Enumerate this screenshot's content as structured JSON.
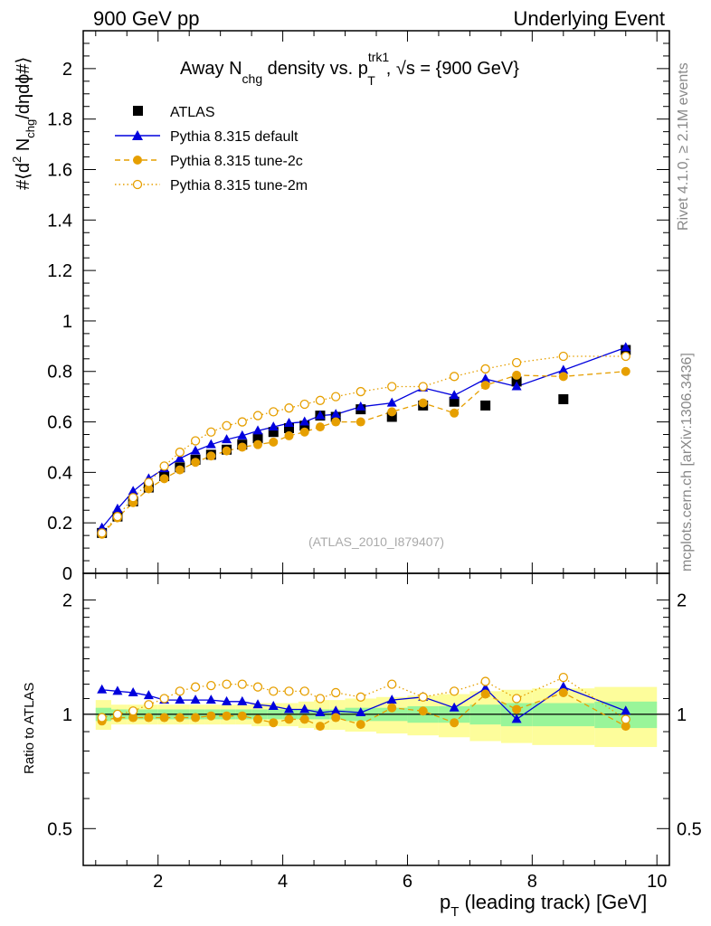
{
  "header": {
    "left": "900 GeV pp",
    "right": "Underlying Event"
  },
  "side_labels": {
    "rivet": "Rivet 4.1.0, ≥ 2.1M events",
    "mcplots": "mcplots.cern.ch [arXiv:1306.3436]"
  },
  "colors": {
    "atlas": "#000000",
    "pythia_default": "#0000dd",
    "tune_2c": "#e69f00",
    "tune_2m": "#e69f00",
    "band_inner": "#99f599",
    "band_outer": "#fdfd9b"
  },
  "chart_data": {
    "type": "scatter",
    "title_parts": {
      "t1": "Away N",
      "t1_sub": "chg",
      "t2": " density vs. p",
      "t2_sup": "trk1",
      "t2_sub": "T",
      "t3": ", √s = {900 GeV}"
    },
    "ylabel_parts": {
      "a": "#⟨d",
      "a_sup": "2",
      "b": " N",
      "b_sub": "chg",
      "c": "/dηdϕ#⟩"
    },
    "xlabel_parts": {
      "a": "p",
      "a_sub": "T",
      "b": " (leading track) [GeV]"
    },
    "ratio_ylabel": "Ratio to ATLAS",
    "watermark": "(ATLAS_2010_I879407)",
    "xlim": [
      0.8,
      10.2
    ],
    "ylim": [
      0,
      2.15
    ],
    "ratio_ylim": [
      0.4,
      2.35
    ],
    "x_ticks": [
      "2",
      "4",
      "6",
      "8",
      "10"
    ],
    "y_ticks": [
      "0",
      "0.2",
      "0.4",
      "0.6",
      "0.8",
      "1",
      "1.2",
      "1.4",
      "1.6",
      "1.8",
      "2"
    ],
    "ratio_ticks": [
      "0.5",
      "1",
      "2"
    ],
    "x": [
      1.1,
      1.35,
      1.6,
      1.85,
      2.1,
      2.35,
      2.6,
      2.85,
      3.1,
      3.35,
      3.6,
      3.85,
      4.1,
      4.35,
      4.6,
      4.85,
      5.25,
      5.75,
      6.25,
      6.75,
      7.25,
      7.75,
      8.5,
      9.5
    ],
    "series": [
      {
        "name": "ATLAS",
        "style": "data",
        "values": [
          0.16,
          0.225,
          0.285,
          0.34,
          0.385,
          0.42,
          0.45,
          0.47,
          0.49,
          0.51,
          0.535,
          0.56,
          0.575,
          0.585,
          0.625,
          0.62,
          0.65,
          0.62,
          0.665,
          0.68,
          0.665,
          0.76,
          0.69,
          0.885
        ]
      },
      {
        "name": "Pythia 8.315 default",
        "style": "solid-triangle",
        "values": [
          0.18,
          0.255,
          0.325,
          0.375,
          0.415,
          0.455,
          0.485,
          0.51,
          0.53,
          0.545,
          0.565,
          0.58,
          0.595,
          0.6,
          0.625,
          0.63,
          0.66,
          0.675,
          0.735,
          0.705,
          0.77,
          0.74,
          0.805,
          0.895
        ]
      },
      {
        "name": "Pythia 8.315 tune-2c",
        "style": "dashed-filled-circle",
        "values": [
          0.155,
          0.22,
          0.28,
          0.335,
          0.375,
          0.41,
          0.44,
          0.465,
          0.485,
          0.5,
          0.51,
          0.52,
          0.545,
          0.56,
          0.58,
          0.6,
          0.6,
          0.64,
          0.675,
          0.635,
          0.745,
          0.785,
          0.78,
          0.8
        ]
      },
      {
        "name": "Pythia 8.315 tune-2m",
        "style": "dotted-open-circle",
        "values": [
          0.16,
          0.225,
          0.3,
          0.36,
          0.425,
          0.48,
          0.525,
          0.56,
          0.585,
          0.6,
          0.625,
          0.64,
          0.655,
          0.67,
          0.685,
          0.7,
          0.72,
          0.74,
          0.74,
          0.78,
          0.81,
          0.835,
          0.86,
          0.86
        ]
      }
    ],
    "ratio_series": [
      {
        "name": "Pythia 8.315 default",
        "values": [
          1.16,
          1.15,
          1.14,
          1.12,
          1.09,
          1.09,
          1.09,
          1.09,
          1.08,
          1.08,
          1.06,
          1.05,
          1.03,
          1.03,
          1.01,
          1.02,
          1.01,
          1.09,
          1.11,
          1.04,
          1.17,
          0.97,
          1.18,
          1.02
        ]
      },
      {
        "name": "Pythia 8.315 tune-2c",
        "values": [
          0.96,
          0.98,
          0.98,
          0.98,
          0.98,
          0.98,
          0.98,
          0.99,
          0.99,
          0.99,
          0.97,
          0.95,
          0.97,
          0.97,
          0.93,
          0.98,
          0.94,
          1.04,
          1.02,
          0.95,
          1.13,
          1.03,
          1.14,
          0.93
        ]
      },
      {
        "name": "Pythia 8.315 tune-2m",
        "values": [
          0.98,
          1.0,
          1.02,
          1.06,
          1.1,
          1.15,
          1.18,
          1.19,
          1.2,
          1.2,
          1.18,
          1.15,
          1.15,
          1.15,
          1.1,
          1.14,
          1.11,
          1.2,
          1.11,
          1.15,
          1.22,
          1.1,
          1.25,
          0.97
        ]
      }
    ],
    "bands": {
      "edges": [
        1.0,
        1.25,
        1.5,
        1.75,
        2.0,
        2.25,
        2.5,
        2.75,
        3.0,
        3.25,
        3.5,
        3.75,
        4.0,
        4.25,
        4.5,
        4.75,
        5.0,
        5.5,
        6.0,
        6.5,
        7.0,
        7.5,
        8.0,
        9.0,
        10.0
      ],
      "inner_halfwidth": [
        0.04,
        0.03,
        0.03,
        0.03,
        0.03,
        0.03,
        0.03,
        0.03,
        0.03,
        0.03,
        0.03,
        0.03,
        0.03,
        0.03,
        0.03,
        0.03,
        0.04,
        0.04,
        0.05,
        0.05,
        0.06,
        0.07,
        0.07,
        0.08
      ],
      "outer_halfwidth": [
        0.09,
        0.06,
        0.06,
        0.06,
        0.06,
        0.06,
        0.06,
        0.06,
        0.06,
        0.06,
        0.07,
        0.07,
        0.07,
        0.08,
        0.09,
        0.09,
        0.1,
        0.11,
        0.12,
        0.13,
        0.15,
        0.16,
        0.17,
        0.18
      ]
    }
  }
}
